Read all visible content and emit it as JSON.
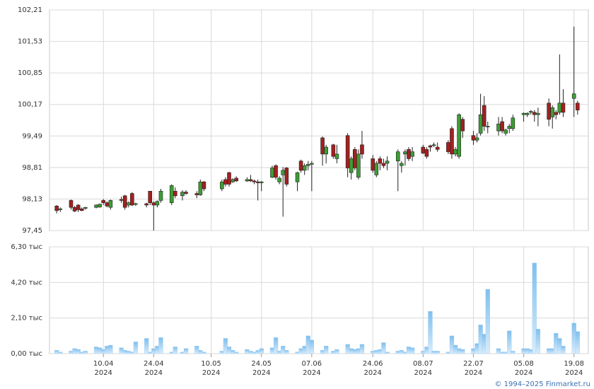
{
  "chart_data": {
    "type": "candlestick",
    "dates": [
      "2024-03-28",
      "2024-03-29",
      "2024-04-01",
      "2024-04-02",
      "2024-04-03",
      "2024-04-04",
      "2024-04-05",
      "2024-04-08",
      "2024-04-09",
      "2024-04-10",
      "2024-04-11",
      "2024-04-12",
      "2024-04-15",
      "2024-04-16",
      "2024-04-17",
      "2024-04-18",
      "2024-04-19",
      "2024-04-22",
      "2024-04-23",
      "2024-04-24",
      "2024-04-25",
      "2024-04-26",
      "2024-04-29",
      "2024-04-30",
      "2024-05-02",
      "2024-05-03",
      "2024-05-06",
      "2024-05-07",
      "2024-05-08",
      "2024-05-13",
      "2024-05-14",
      "2024-05-15",
      "2024-05-16",
      "2024-05-17",
      "2024-05-20",
      "2024-05-21",
      "2024-05-22",
      "2024-05-23",
      "2024-05-24",
      "2024-05-27",
      "2024-05-28",
      "2024-05-29",
      "2024-05-30",
      "2024-05-31",
      "2024-06-03",
      "2024-06-04",
      "2024-06-05",
      "2024-06-06",
      "2024-06-07",
      "2024-06-10",
      "2024-06-11",
      "2024-06-13",
      "2024-06-14",
      "2024-06-17",
      "2024-06-18",
      "2024-06-19",
      "2024-06-20",
      "2024-06-21",
      "2024-06-24",
      "2024-06-25",
      "2024-06-26",
      "2024-06-27",
      "2024-06-28",
      "2024-07-01",
      "2024-07-02",
      "2024-07-03",
      "2024-07-04",
      "2024-07-05",
      "2024-07-08",
      "2024-07-09",
      "2024-07-10",
      "2024-07-11",
      "2024-07-12",
      "2024-07-15",
      "2024-07-16",
      "2024-07-17",
      "2024-07-18",
      "2024-07-19",
      "2024-07-22",
      "2024-07-23",
      "2024-07-24",
      "2024-07-25",
      "2024-07-26",
      "2024-07-29",
      "2024-07-30",
      "2024-07-31",
      "2024-08-01",
      "2024-08-02",
      "2024-08-05",
      "2024-08-06",
      "2024-08-07",
      "2024-08-08",
      "2024-08-09",
      "2024-08-12",
      "2024-08-13",
      "2024-08-14",
      "2024-08-15",
      "2024-08-16",
      "2024-08-19",
      "2024-08-20"
    ],
    "ohlc": [
      [
        97.98,
        98.0,
        97.82,
        97.88
      ],
      [
        97.9,
        97.95,
        97.85,
        97.92
      ],
      [
        98.1,
        98.12,
        97.9,
        97.95
      ],
      [
        97.95,
        97.98,
        97.85,
        97.87
      ],
      [
        98.0,
        98.02,
        97.85,
        97.9
      ],
      [
        97.92,
        97.95,
        97.87,
        97.88
      ],
      [
        97.93,
        97.96,
        97.9,
        97.95
      ],
      [
        97.95,
        98.02,
        97.93,
        98.0
      ],
      [
        97.96,
        98.03,
        97.94,
        98.02
      ],
      [
        98.1,
        98.13,
        98.0,
        98.05
      ],
      [
        98.05,
        98.08,
        97.95,
        97.98
      ],
      [
        97.95,
        98.12,
        97.9,
        98.1
      ],
      [
        98.12,
        98.18,
        98.05,
        98.1
      ],
      [
        98.2,
        98.22,
        97.9,
        97.95
      ],
      [
        98.0,
        98.08,
        97.95,
        98.05
      ],
      [
        98.25,
        98.28,
        97.98,
        98.0
      ],
      [
        98.02,
        98.05,
        97.98,
        98.03
      ],
      [
        98.03,
        98.05,
        97.95,
        98.0
      ],
      [
        98.3,
        98.3,
        98.0,
        98.05
      ],
      [
        98.05,
        98.08,
        97.45,
        98.0
      ],
      [
        98.0,
        98.1,
        97.95,
        98.08
      ],
      [
        98.1,
        98.35,
        98.05,
        98.3
      ],
      [
        98.05,
        98.45,
        98.0,
        98.42
      ],
      [
        98.3,
        98.38,
        98.15,
        98.2
      ],
      [
        98.2,
        98.32,
        98.1,
        98.28
      ],
      [
        98.28,
        98.32,
        98.22,
        98.25
      ],
      [
        98.25,
        98.3,
        98.15,
        98.22
      ],
      [
        98.22,
        98.55,
        98.2,
        98.5
      ],
      [
        98.5,
        98.52,
        98.3,
        98.35
      ],
      [
        98.35,
        98.55,
        98.3,
        98.5
      ],
      [
        98.55,
        98.6,
        98.4,
        98.45
      ],
      [
        98.7,
        98.72,
        98.4,
        98.45
      ],
      [
        98.5,
        98.58,
        98.48,
        98.55
      ],
      [
        98.58,
        98.62,
        98.5,
        98.52
      ],
      [
        98.52,
        98.6,
        98.5,
        98.55
      ],
      [
        98.55,
        98.65,
        98.5,
        98.52
      ],
      [
        98.52,
        98.55,
        98.45,
        98.5
      ],
      [
        98.5,
        98.55,
        98.1,
        98.48
      ],
      [
        98.48,
        98.52,
        98.3,
        98.5
      ],
      [
        98.6,
        98.85,
        98.58,
        98.8
      ],
      [
        98.85,
        98.88,
        98.55,
        98.6
      ],
      [
        98.5,
        98.62,
        98.45,
        98.58
      ],
      [
        98.65,
        98.82,
        97.75,
        98.75
      ],
      [
        98.8,
        98.82,
        98.4,
        98.45
      ],
      [
        98.5,
        98.72,
        98.3,
        98.7
      ],
      [
        98.95,
        98.98,
        98.7,
        98.75
      ],
      [
        98.75,
        98.9,
        98.65,
        98.85
      ],
      [
        98.85,
        98.95,
        98.75,
        98.88
      ],
      [
        98.88,
        98.95,
        98.3,
        98.9
      ],
      [
        99.45,
        99.48,
        98.85,
        99.1
      ],
      [
        99.1,
        99.3,
        98.9,
        99.25
      ],
      [
        99.3,
        99.32,
        99.0,
        99.05
      ],
      [
        99.0,
        99.3,
        98.9,
        99.1
      ],
      [
        99.5,
        99.55,
        98.6,
        98.8
      ],
      [
        98.7,
        99.05,
        98.55,
        99.0
      ],
      [
        99.2,
        99.25,
        98.75,
        98.8
      ],
      [
        98.6,
        99.2,
        98.55,
        99.1
      ],
      [
        99.3,
        99.6,
        99.0,
        99.1
      ],
      [
        99.0,
        99.08,
        98.7,
        98.75
      ],
      [
        98.65,
        98.95,
        98.6,
        98.9
      ],
      [
        99.0,
        99.05,
        98.75,
        98.9
      ],
      [
        98.9,
        99.0,
        98.8,
        98.85
      ],
      [
        98.9,
        99.05,
        98.75,
        98.95
      ],
      [
        98.95,
        99.2,
        98.3,
        99.15
      ],
      [
        98.85,
        98.95,
        98.7,
        98.9
      ],
      [
        99.1,
        99.2,
        98.85,
        99.15
      ],
      [
        99.2,
        99.25,
        98.95,
        99.0
      ],
      [
        99.05,
        99.25,
        98.95,
        99.15
      ],
      [
        99.25,
        99.3,
        99.1,
        99.12
      ],
      [
        99.2,
        99.25,
        99.0,
        99.05
      ],
      [
        99.28,
        99.3,
        99.15,
        99.25
      ],
      [
        99.3,
        99.35,
        99.25,
        99.3
      ],
      [
        99.25,
        99.35,
        99.15,
        99.2
      ],
      [
        99.35,
        99.4,
        99.1,
        99.15
      ],
      [
        99.65,
        99.7,
        99.0,
        99.1
      ],
      [
        99.1,
        99.25,
        99.05,
        99.2
      ],
      [
        99.05,
        99.98,
        99.0,
        99.95
      ],
      [
        99.85,
        99.9,
        99.45,
        99.6
      ],
      [
        99.5,
        99.6,
        99.3,
        99.4
      ],
      [
        99.4,
        99.55,
        99.35,
        99.45
      ],
      [
        99.55,
        100.4,
        99.5,
        99.95
      ],
      [
        100.15,
        100.35,
        99.6,
        99.7
      ],
      [
        99.7,
        99.8,
        99.55,
        99.7
      ],
      [
        99.6,
        99.9,
        99.5,
        99.75
      ],
      [
        99.8,
        99.9,
        99.55,
        99.6
      ],
      [
        99.55,
        99.65,
        99.5,
        99.62
      ],
      [
        99.65,
        99.75,
        99.55,
        99.7
      ],
      [
        99.65,
        99.95,
        99.6,
        99.88
      ],
      [
        99.95,
        100.0,
        99.8,
        99.98
      ],
      [
        99.95,
        100.0,
        99.9,
        99.98
      ],
      [
        100.0,
        100.05,
        99.95,
        100.02
      ],
      [
        100.0,
        100.05,
        99.8,
        99.95
      ],
      [
        99.95,
        100.1,
        99.7,
        99.98
      ],
      [
        100.2,
        100.3,
        99.7,
        99.85
      ],
      [
        99.9,
        100.15,
        99.65,
        100.1
      ],
      [
        100.0,
        100.05,
        99.85,
        99.95
      ],
      [
        100.0,
        101.25,
        99.95,
        100.2
      ],
      [
        100.2,
        100.5,
        99.9,
        100.0
      ],
      [
        100.3,
        101.85,
        99.9,
        100.4
      ],
      [
        100.2,
        100.25,
        99.95,
        100.05
      ]
    ],
    "up_color": "#3d9c35",
    "down_color": "#a51f1f",
    "ylim": [
      97.45,
      102.21
    ],
    "yticks": [
      {
        "value": 97.45,
        "label": "97,45"
      },
      {
        "value": 98.13,
        "label": "98,13"
      },
      {
        "value": 98.81,
        "label": "98,81"
      },
      {
        "value": 99.49,
        "label": "99,49"
      },
      {
        "value": 100.17,
        "label": "100,17"
      },
      {
        "value": 100.85,
        "label": "100,85"
      },
      {
        "value": 101.53,
        "label": "101,53"
      },
      {
        "value": 102.21,
        "label": "102,21"
      }
    ],
    "xlim": [
      "2024-03-26",
      "2024-08-23"
    ],
    "xticks": [
      {
        "value": "2024-04-10",
        "label": "10.04\n2024"
      },
      {
        "value": "2024-04-24",
        "label": "24.04\n2024"
      },
      {
        "value": "2024-05-10",
        "label": "10.05\n2024"
      },
      {
        "value": "2024-05-24",
        "label": "24.05\n2024"
      },
      {
        "value": "2024-06-07",
        "label": "07.06\n2024"
      },
      {
        "value": "2024-06-24",
        "label": "24.06\n2024"
      },
      {
        "value": "2024-07-08",
        "label": "08.07\n2024"
      },
      {
        "value": "2024-07-22",
        "label": "22.07\n2024"
      },
      {
        "value": "2024-08-05",
        "label": "05.08\n2024"
      },
      {
        "value": "2024-08-19",
        "label": "19.08\n2024"
      }
    ],
    "grid": true,
    "volume": {
      "color": "#9fcff3",
      "values": [
        200,
        100,
        150,
        300,
        250,
        100,
        150,
        400,
        350,
        250,
        450,
        500,
        350,
        200,
        150,
        100,
        700,
        900,
        100,
        300,
        450,
        950,
        100,
        400,
        100,
        300,
        450,
        200,
        100,
        150,
        900,
        400,
        200,
        100,
        250,
        150,
        100,
        200,
        300,
        350,
        950,
        150,
        450,
        200,
        100,
        300,
        450,
        1050,
        800,
        200,
        450,
        150,
        250,
        550,
        300,
        250,
        300,
        550,
        150,
        200,
        250,
        650,
        100,
        150,
        200,
        100,
        400,
        350,
        150,
        400,
        2500,
        150,
        150,
        100,
        1050,
        500,
        300,
        250,
        300,
        600,
        1700,
        1150,
        3800,
        300,
        100,
        100,
        1350,
        150,
        300,
        300,
        250,
        5350,
        1450,
        300,
        300,
        1200,
        900,
        450,
        1800,
        1300
      ],
      "ylim": [
        0,
        6300
      ],
      "yticks": [
        {
          "value": 0,
          "label": "0,00 тыс"
        },
        {
          "value": 2100,
          "label": "2,10 тыс"
        },
        {
          "value": 4200,
          "label": "4,20 тыс"
        },
        {
          "value": 6300,
          "label": "6,30 тыс"
        }
      ]
    }
  },
  "footer": "© 1994–2025 Finmarket.ru"
}
